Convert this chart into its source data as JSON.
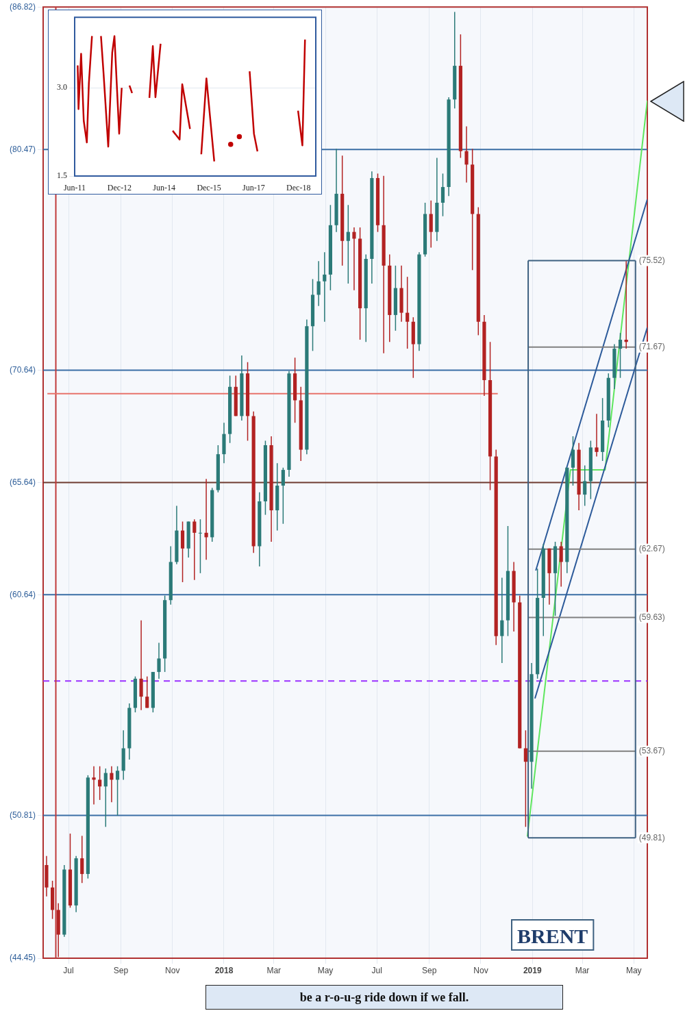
{
  "chart_data": [
    {
      "type": "candlestick",
      "x": [
        "2017-06-05",
        "2017-06-12",
        "2017-06-19",
        "2017-06-26",
        "2017-07-03",
        "2017-07-10",
        "2017-07-17",
        "2017-07-24",
        "2017-07-31",
        "2017-08-07",
        "2017-08-14",
        "2017-08-21",
        "2017-08-28",
        "2017-09-04",
        "2017-09-11",
        "2017-09-18",
        "2017-09-25",
        "2017-10-02",
        "2017-10-09",
        "2017-10-16",
        "2017-10-23",
        "2017-10-30",
        "2017-11-06",
        "2017-11-13",
        "2017-11-20",
        "2017-11-27",
        "2017-12-04",
        "2017-12-11",
        "2017-12-18",
        "2017-12-25",
        "2018-01-01",
        "2018-01-08",
        "2018-01-15",
        "2018-01-22",
        "2018-01-29",
        "2018-02-05",
        "2018-02-12",
        "2018-02-19",
        "2018-02-26",
        "2018-03-05",
        "2018-03-12",
        "2018-03-19",
        "2018-03-26",
        "2018-04-02",
        "2018-04-09",
        "2018-04-16",
        "2018-04-23",
        "2018-04-30",
        "2018-05-07",
        "2018-05-14",
        "2018-05-21",
        "2018-05-28",
        "2018-06-04",
        "2018-06-11",
        "2018-06-18",
        "2018-06-25",
        "2018-07-02",
        "2018-07-09",
        "2018-07-16",
        "2018-07-23",
        "2018-07-30",
        "2018-08-06",
        "2018-08-13",
        "2018-08-20",
        "2018-08-27",
        "2018-09-03",
        "2018-09-10",
        "2018-09-17",
        "2018-09-24",
        "2018-10-01",
        "2018-10-08",
        "2018-10-15",
        "2018-10-22",
        "2018-10-29",
        "2018-11-05",
        "2018-11-12",
        "2018-11-19",
        "2018-11-26",
        "2018-12-03",
        "2018-12-10",
        "2018-12-17",
        "2018-12-24",
        "2018-12-31",
        "2019-01-07",
        "2019-01-14",
        "2019-01-21",
        "2019-01-28",
        "2019-02-04",
        "2019-02-11",
        "2019-02-18",
        "2019-02-25",
        "2019-03-04",
        "2019-03-11",
        "2019-03-18",
        "2019-03-25",
        "2019-04-01",
        "2019-04-08",
        "2019-04-15",
        "2019-04-22"
      ],
      "ohlc": [
        [
          48.6,
          49.0,
          47.2,
          47.6
        ],
        [
          47.6,
          47.9,
          46.2,
          46.6
        ],
        [
          46.6,
          46.9,
          44.5,
          45.5
        ],
        [
          45.5,
          48.6,
          45.4,
          48.4
        ],
        [
          48.4,
          50.0,
          46.7,
          46.8
        ],
        [
          46.8,
          49.0,
          46.5,
          48.9
        ],
        [
          48.9,
          49.9,
          47.8,
          48.2
        ],
        [
          48.2,
          52.6,
          48.0,
          52.5
        ],
        [
          52.5,
          53.0,
          51.3,
          52.4
        ],
        [
          52.4,
          53.0,
          51.5,
          52.1
        ],
        [
          52.1,
          52.9,
          50.3,
          52.7
        ],
        [
          52.7,
          53.0,
          51.4,
          52.4
        ],
        [
          52.4,
          53.0,
          50.8,
          52.8
        ],
        [
          52.8,
          54.6,
          52.4,
          53.8
        ],
        [
          53.8,
          55.8,
          53.3,
          55.6
        ],
        [
          55.6,
          57.0,
          55.4,
          56.9
        ],
        [
          56.9,
          59.5,
          55.5,
          56.1
        ],
        [
          56.1,
          57.0,
          55.6,
          55.6
        ],
        [
          55.6,
          57.2,
          55.4,
          57.2
        ],
        [
          57.2,
          58.5,
          56.9,
          57.8
        ],
        [
          57.8,
          60.6,
          57.2,
          60.4
        ],
        [
          60.4,
          62.8,
          60.2,
          62.1
        ],
        [
          62.1,
          64.6,
          62.0,
          63.5
        ],
        [
          63.5,
          63.9,
          61.2,
          62.7
        ],
        [
          62.7,
          63.9,
          62.3,
          63.9
        ],
        [
          63.9,
          64.0,
          61.3,
          63.4
        ],
        [
          63.4,
          64.0,
          61.6,
          63.4
        ],
        [
          63.4,
          65.8,
          62.2,
          63.2
        ],
        [
          63.2,
          65.4,
          63.0,
          65.3
        ],
        [
          65.3,
          67.3,
          65.2,
          66.9
        ],
        [
          66.9,
          68.3,
          66.5,
          67.8
        ],
        [
          67.8,
          70.4,
          67.4,
          69.9
        ],
        [
          69.9,
          70.4,
          68.6,
          68.6
        ],
        [
          68.6,
          71.3,
          68.4,
          70.5
        ],
        [
          70.5,
          71.0,
          67.5,
          68.6
        ],
        [
          68.6,
          68.8,
          62.5,
          62.8
        ],
        [
          62.8,
          65.2,
          61.9,
          64.8
        ],
        [
          64.8,
          67.5,
          64.2,
          67.3
        ],
        [
          67.3,
          67.7,
          63.0,
          64.4
        ],
        [
          64.4,
          66.5,
          63.5,
          65.5
        ],
        [
          65.5,
          66.3,
          63.8,
          66.2
        ],
        [
          66.2,
          70.6,
          65.9,
          70.5
        ],
        [
          70.5,
          71.2,
          68.3,
          69.3
        ],
        [
          69.3,
          69.9,
          66.6,
          67.1
        ],
        [
          67.1,
          72.9,
          66.9,
          72.6
        ],
        [
          72.6,
          74.7,
          71.5,
          74.0
        ],
        [
          74.0,
          75.5,
          73.5,
          74.6
        ],
        [
          74.6,
          75.9,
          72.8,
          74.9
        ],
        [
          74.9,
          78.0,
          74.2,
          77.1
        ],
        [
          77.1,
          80.5,
          76.8,
          78.5
        ],
        [
          78.5,
          80.2,
          75.3,
          76.4
        ],
        [
          76.4,
          78.0,
          74.5,
          76.8
        ],
        [
          76.8,
          77.0,
          74.2,
          76.5
        ],
        [
          76.5,
          77.0,
          72.0,
          73.4
        ],
        [
          73.4,
          75.8,
          71.9,
          75.6
        ],
        [
          75.6,
          79.5,
          74.5,
          79.2
        ],
        [
          79.2,
          79.4,
          76.8,
          77.1
        ],
        [
          77.1,
          79.3,
          71.4,
          75.3
        ],
        [
          75.3,
          75.8,
          71.9,
          73.1
        ],
        [
          73.1,
          75.3,
          72.4,
          74.3
        ],
        [
          74.3,
          75.3,
          72.8,
          73.2
        ],
        [
          73.2,
          74.8,
          71.6,
          72.8
        ],
        [
          72.8,
          73.0,
          70.3,
          71.8
        ],
        [
          71.8,
          75.9,
          71.5,
          75.8
        ],
        [
          75.8,
          78.1,
          75.7,
          77.6
        ],
        [
          77.6,
          78.2,
          76.1,
          76.8
        ],
        [
          76.8,
          80.1,
          76.4,
          78.1
        ],
        [
          78.1,
          79.4,
          77.5,
          78.8
        ],
        [
          78.8,
          82.8,
          78.4,
          82.7
        ],
        [
          82.7,
          86.6,
          82.3,
          84.2
        ],
        [
          84.2,
          85.6,
          80.1,
          80.4
        ],
        [
          80.4,
          81.5,
          79.0,
          79.8
        ],
        [
          79.8,
          80.5,
          75.1,
          77.6
        ],
        [
          77.6,
          77.9,
          72.2,
          72.8
        ],
        [
          72.8,
          73.1,
          69.5,
          70.2
        ],
        [
          70.2,
          71.9,
          65.3,
          66.8
        ],
        [
          66.8,
          67.1,
          58.4,
          58.8
        ],
        [
          58.8,
          61.4,
          57.6,
          59.5
        ],
        [
          59.5,
          63.7,
          58.8,
          61.7
        ],
        [
          61.7,
          62.1,
          59.0,
          60.3
        ],
        [
          60.3,
          60.6,
          53.8,
          53.8
        ],
        [
          53.8,
          54.6,
          50.3,
          53.2
        ],
        [
          53.2,
          57.6,
          52.0,
          57.1
        ],
        [
          57.1,
          61.8,
          56.9,
          60.5
        ],
        [
          60.5,
          62.9,
          58.8,
          62.7
        ],
        [
          62.7,
          62.7,
          60.2,
          61.6
        ],
        [
          61.6,
          63.0,
          59.7,
          62.8
        ],
        [
          62.8,
          63.0,
          61.0,
          62.1
        ],
        [
          62.1,
          66.3,
          61.6,
          66.3
        ],
        [
          66.3,
          67.7,
          65.5,
          67.1
        ],
        [
          67.1,
          67.4,
          64.4,
          65.1
        ],
        [
          65.1,
          66.4,
          64.6,
          65.7
        ],
        [
          65.7,
          67.5,
          64.9,
          67.2
        ],
        [
          67.2,
          68.7,
          66.8,
          67.0
        ],
        [
          67.0,
          69.4,
          66.6,
          68.4
        ],
        [
          68.4,
          70.5,
          68.1,
          70.3
        ],
        [
          70.3,
          71.8,
          69.8,
          71.6
        ],
        [
          71.6,
          72.3,
          70.3,
          72.0
        ],
        [
          72.0,
          75.5,
          71.6,
          71.9
        ]
      ],
      "xlim": [
        "2017-06-01",
        "2019-05-17"
      ],
      "xticks": [
        {
          "value": "2017-07-01",
          "label": "Jul"
        },
        {
          "value": "2017-09-01",
          "label": "Sep"
        },
        {
          "value": "2017-11-01",
          "label": "Nov"
        },
        {
          "value": "2018-01-01",
          "label": "2018"
        },
        {
          "value": "2018-03-01",
          "label": "Mar"
        },
        {
          "value": "2018-05-01",
          "label": "May"
        },
        {
          "value": "2018-07-01",
          "label": "Jul"
        },
        {
          "value": "2018-09-01",
          "label": "Sep"
        },
        {
          "value": "2018-11-01",
          "label": "Nov"
        },
        {
          "value": "2019-01-01",
          "label": "2019"
        },
        {
          "value": "2019-03-01",
          "label": "Mar"
        },
        {
          "value": "2019-05-01",
          "label": "May"
        }
      ],
      "ylim": [
        44.45,
        86.82
      ],
      "yticks": [
        {
          "value": 44.45,
          "label": "(44.45)"
        },
        {
          "value": 50.81,
          "label": "(50.81)"
        },
        {
          "value": 60.64,
          "label": "(60.64)"
        },
        {
          "value": 65.64,
          "label": "(65.64)"
        },
        {
          "value": 70.64,
          "label": "(70.64)"
        },
        {
          "value": 80.47,
          "label": "(80.47)"
        },
        {
          "value": 86.82,
          "label": "(86.82)"
        }
      ],
      "grid": true,
      "series": [
        {
          "type": "line",
          "x": [
            "2017-06-06",
            "2018-11-21"
          ],
          "values": [
            69.6,
            69.6
          ],
          "color": "#e8736b"
        },
        {
          "type": "line",
          "x": [
            "2018-12-27",
            "2019-05-03"
          ],
          "values": [
            75.52,
            75.52
          ],
          "color": "#3d6080"
        },
        {
          "type": "line",
          "x": [
            "2018-12-27",
            "2019-05-03"
          ],
          "values": [
            49.81,
            49.81
          ],
          "color": "#3d6080"
        },
        {
          "type": "line",
          "x": [
            "2018-12-27",
            "2018-12-27"
          ],
          "values": [
            49.81,
            75.52
          ],
          "color": "#3d6080"
        },
        {
          "type": "line",
          "x": [
            "2019-05-03",
            "2019-05-03"
          ],
          "values": [
            49.81,
            75.52
          ],
          "color": "#3d6080"
        },
        {
          "type": "line",
          "x": [
            "2018-12-27",
            "2019-05-03"
          ],
          "values": [
            53.67,
            53.67
          ],
          "color": "#808080"
        },
        {
          "type": "line",
          "x": [
            "2018-12-27",
            "2019-05-03"
          ],
          "values": [
            59.63,
            59.63
          ],
          "color": "#808080"
        },
        {
          "type": "line",
          "x": [
            "2018-12-27",
            "2019-05-03"
          ],
          "values": [
            62.67,
            62.67
          ],
          "color": "#808080"
        },
        {
          "type": "line",
          "x": [
            "2018-12-27",
            "2019-05-03"
          ],
          "values": [
            71.67,
            71.67
          ],
          "color": "#808080"
        },
        {
          "type": "line",
          "x": [
            "2019-01-04",
            "2019-05-17"
          ],
          "values": [
            56.02,
            72.55
          ],
          "color": "#2c5a9a"
        },
        {
          "type": "line",
          "x": [
            "2019-01-05",
            "2019-05-17"
          ],
          "values": [
            61.72,
            78.25
          ],
          "color": "#2c5a9a"
        },
        {
          "type": "line",
          "x": [
            "2018-12-26",
            "2019-02-15",
            "2019-03-28",
            "2019-05-17"
          ],
          "values": [
            49.87,
            66.2,
            66.2,
            82.65
          ],
          "color": "#5ee65e"
        }
      ],
      "ref_lines": [
        {
          "axis": "y",
          "value": 50.81,
          "color": "#3a6ea5"
        },
        {
          "axis": "y",
          "value": 60.64,
          "color": "#3a6ea5"
        },
        {
          "axis": "y",
          "value": 70.64,
          "color": "#3a6ea5"
        },
        {
          "axis": "y",
          "value": 80.47,
          "color": "#3a6ea5"
        },
        {
          "axis": "y",
          "value": 65.64,
          "color": "#6e3b2f"
        },
        {
          "axis": "y",
          "value": 56.8,
          "color": "#9b30ff",
          "line_style": "dashed"
        },
        {
          "axis": "x",
          "value": "2017-06-16",
          "color": "#c03a3a"
        }
      ],
      "annotations": [
        "BRENT",
        "be a r-o-u-g ride down if we fall.",
        {
          "text": "(49.81)",
          "x": "2019-05-03",
          "y": 49.81
        },
        {
          "text": "(53.67)",
          "x": "2019-05-03",
          "y": 53.67
        },
        {
          "text": "(59.63)",
          "x": "2019-05-03",
          "y": 59.63
        },
        {
          "text": "(62.67)",
          "x": "2019-05-03",
          "y": 62.67
        },
        {
          "text": "(71.67)",
          "x": "2019-05-03",
          "y": 71.67
        },
        {
          "text": "(75.52)",
          "x": "2019-05-03",
          "y": 75.52
        }
      ]
    },
    {
      "type": "line",
      "x": [
        "2011-07-08",
        "2011-07-18",
        "2011-08-19",
        "2011-09-20",
        "2011-10-28",
        "2011-11-22",
        "2011-12-30",
        "2012-03-07",
        "2012-04-18",
        "2012-05-20",
        "2012-07-16",
        "2012-09-03",
        "2012-09-30",
        "2012-11-27",
        "2012-12-28",
        "2013-01-29",
        "2013-04-02",
        "2013-05-04",
        "2013-06-05",
        "2013-10-10",
        "2013-12-02",
        "2014-01-13",
        "2014-02-14",
        "2014-04-18",
        "2014-07-23",
        "2014-09-13",
        "2014-12-07",
        "2015-01-08",
        "2015-04-13",
        "2015-05-25",
        "2015-08-29",
        "2015-10-31",
        "2016-02-04",
        "2016-03-17",
        "2016-08-23",
        "2016-10-04",
        "2016-12-07",
        "2017-02-08",
        "2017-04-12",
        "2017-06-04",
        "2017-07-17",
        "2017-09-07",
        "2018-11-26",
        "2019-01-18",
        "2019-02-19"
      ],
      "series": [
        {
          "color": "#c00000",
          "values": [
            3.38,
            2.64,
            3.58,
            2.44,
            2.07,
            3.08,
            3.88,
            null,
            3.88,
            3.24,
            2.0,
            3.6,
            3.88,
            2.22,
            3.0,
            null,
            3.04,
            2.91,
            null,
            null,
            2.83,
            3.71,
            2.84,
            3.75,
            null,
            2.27,
            2.12,
            3.06,
            2.3,
            null,
            1.87,
            3.16,
            1.75,
            null,
            2.04,
            null,
            2.17,
            null,
            3.28,
            2.22,
            1.92,
            null,
            2.61,
            2.02,
            3.82
          ]
        }
      ],
      "xlim": [
        "2011-06-01",
        "2019-07-01"
      ],
      "xticks": [
        {
          "value": "2011-06-01",
          "label": "Jun-11"
        },
        {
          "value": "2012-12-01",
          "label": "Dec-12"
        },
        {
          "value": "2014-06-01",
          "label": "Jun-14"
        },
        {
          "value": "2015-12-01",
          "label": "Dec-15"
        },
        {
          "value": "2017-06-01",
          "label": "Jun-17"
        },
        {
          "value": "2018-12-01",
          "label": "Dec-18"
        }
      ],
      "ylim": [
        1.5,
        4.2
      ],
      "yticks": [
        1.5,
        {
          "value": 3.0,
          "label": "3.0"
        }
      ],
      "grid": "y"
    }
  ]
}
